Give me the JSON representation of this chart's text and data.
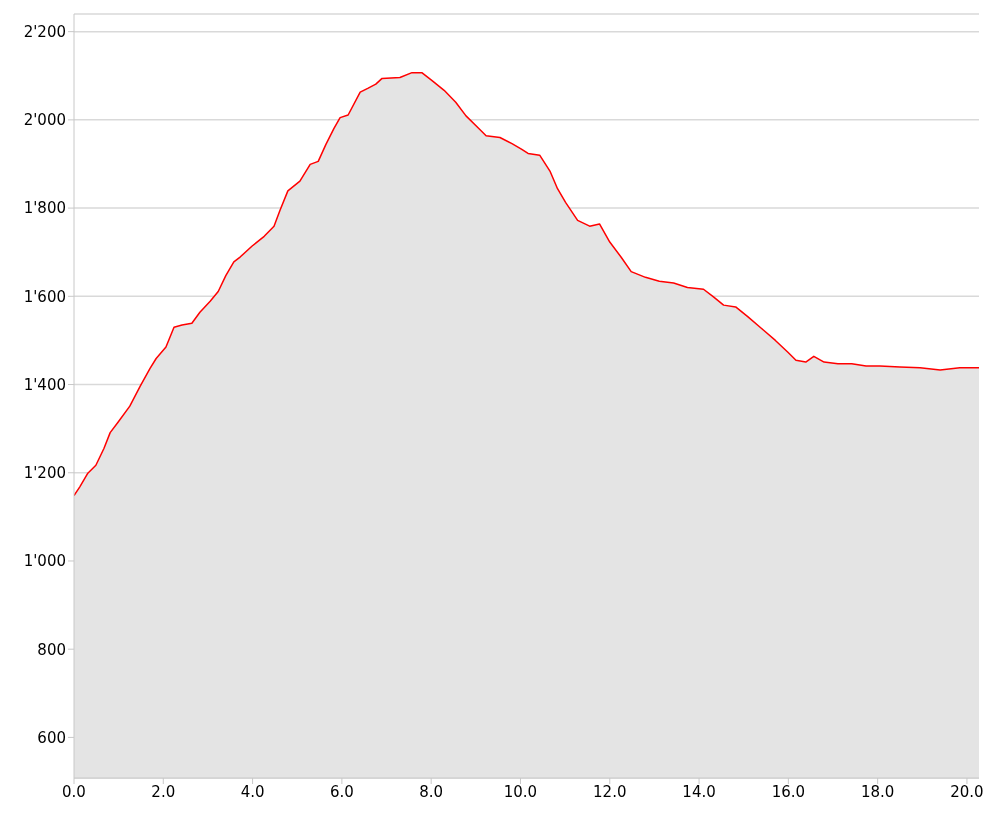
{
  "chart_data": {
    "type": "area",
    "color": "#ff0000",
    "grid": "y",
    "marker": "none",
    "line_style": "solid",
    "x": [
      0,
      0.13,
      0.31,
      0.49,
      0.67,
      0.81,
      0.99,
      1.25,
      1.48,
      1.7,
      1.84,
      2.06,
      2.24,
      2.42,
      2.64,
      2.82,
      3.05,
      3.23,
      3.4,
      3.58,
      3.72,
      3.99,
      4.26,
      4.48,
      4.61,
      4.79,
      5.06,
      5.29,
      5.47,
      5.64,
      5.82,
      5.96,
      6.14,
      6.41,
      6.59,
      6.76,
      6.9,
      7.3,
      7.57,
      7.79,
      8.02,
      8.29,
      8.55,
      8.78,
      9.05,
      9.23,
      9.54,
      9.81,
      10.03,
      10.17,
      10.43,
      10.66,
      10.83,
      11.01,
      11.28,
      11.55,
      11.77,
      12,
      12.26,
      12.48,
      12.8,
      13.11,
      13.43,
      13.74,
      14.1,
      14.33,
      14.55,
      14.82,
      15.09,
      15.4,
      15.71,
      15.99,
      16.17,
      16.39,
      16.57,
      16.8,
      17.11,
      17.42,
      17.74,
      18.05,
      18.5,
      18.95,
      19.4,
      19.84,
      20.27
    ],
    "values": [
      1148,
      1168,
      1199,
      1217,
      1255,
      1291,
      1315,
      1351,
      1396,
      1436,
      1459,
      1485,
      1530,
      1535,
      1539,
      1564,
      1589,
      1611,
      1647,
      1678,
      1689,
      1714,
      1736,
      1759,
      1794,
      1839,
      1861,
      1899,
      1906,
      1944,
      1980,
      2005,
      2011,
      2063,
      2072,
      2081,
      2094,
      2096,
      2107,
      2107,
      2089,
      2067,
      2040,
      2009,
      1982,
      1964,
      1960,
      1946,
      1933,
      1924,
      1920,
      1884,
      1844,
      1813,
      1772,
      1759,
      1764,
      1723,
      1688,
      1656,
      1643,
      1634,
      1630,
      1620,
      1616,
      1598,
      1580,
      1576,
      1554,
      1527,
      1500,
      1473,
      1455,
      1451,
      1464,
      1451,
      1447,
      1447,
      1442,
      1442,
      1440,
      1438,
      1433,
      1438,
      1438
    ],
    "xlim": [
      0,
      20.27
    ],
    "xticks": [
      {
        "value": 0,
        "label": "0.0"
      },
      {
        "value": 2,
        "label": "2.0"
      },
      {
        "value": 4,
        "label": "4.0"
      },
      {
        "value": 6,
        "label": "6.0"
      },
      {
        "value": 8,
        "label": "8.0"
      },
      {
        "value": 10,
        "label": "10.0"
      },
      {
        "value": 12,
        "label": "12.0"
      },
      {
        "value": 14,
        "label": "14.0"
      },
      {
        "value": 16,
        "label": "16.0"
      },
      {
        "value": 18,
        "label": "18.0"
      },
      {
        "value": 20,
        "label": "20.0"
      }
    ],
    "ylim": [
      508,
      2240
    ],
    "yticks": [
      600,
      800,
      {
        "value": 1000,
        "label": "1'000"
      },
      {
        "value": 1200,
        "label": "1'200"
      },
      {
        "value": 1400,
        "label": "1'400"
      },
      {
        "value": 1600,
        "label": "1'600"
      },
      {
        "value": 1800,
        "label": "1'800"
      },
      {
        "value": 2000,
        "label": "2'000"
      },
      {
        "value": 2200,
        "label": "2'200"
      }
    ]
  }
}
